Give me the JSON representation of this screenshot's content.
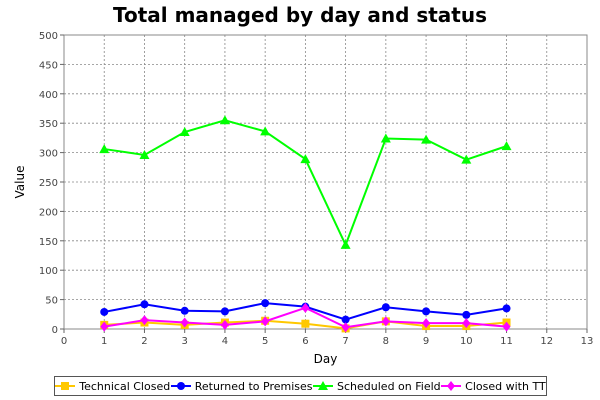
{
  "chart_data": {
    "type": "line",
    "title": "Total managed by day and status",
    "xlabel": "Day",
    "ylabel": "Value",
    "xlim": [
      0,
      13
    ],
    "ylim": [
      0,
      500
    ],
    "xticks": [
      0,
      1,
      2,
      3,
      4,
      5,
      6,
      7,
      8,
      9,
      10,
      11,
      12,
      13
    ],
    "yticks": [
      0,
      50,
      100,
      150,
      200,
      250,
      300,
      350,
      400,
      450,
      500
    ],
    "grid": true,
    "legend_position": "bottom",
    "series": [
      {
        "name": "Technical Closed",
        "color": "#ffc800",
        "marker": "square",
        "x": [
          1,
          2,
          3,
          4,
          5,
          6,
          7,
          8,
          9,
          10,
          11
        ],
        "y": [
          7,
          11,
          7,
          11,
          14,
          9,
          1,
          13,
          5,
          5,
          11
        ]
      },
      {
        "name": "Returned to Premises",
        "color": "#0000ff",
        "marker": "circle",
        "x": [
          1,
          2,
          3,
          4,
          5,
          6,
          7,
          8,
          9,
          10,
          11
        ],
        "y": [
          29,
          42,
          31,
          30,
          44,
          38,
          16,
          37,
          30,
          24,
          35
        ]
      },
      {
        "name": "Scheduled on Field",
        "color": "#00ff00",
        "marker": "triangle",
        "x": [
          1,
          2,
          3,
          4,
          5,
          6,
          7,
          8,
          9,
          10,
          11
        ],
        "y": [
          306,
          296,
          335,
          355,
          336,
          289,
          143,
          324,
          322,
          288,
          311
        ]
      },
      {
        "name": "Closed with TT",
        "color": "#ff00ff",
        "marker": "diamond",
        "x": [
          1,
          2,
          3,
          4,
          5,
          6,
          7,
          8,
          9,
          10,
          11
        ],
        "y": [
          4,
          15,
          11,
          7,
          13,
          36,
          3,
          13,
          10,
          10,
          4
        ]
      }
    ]
  }
}
